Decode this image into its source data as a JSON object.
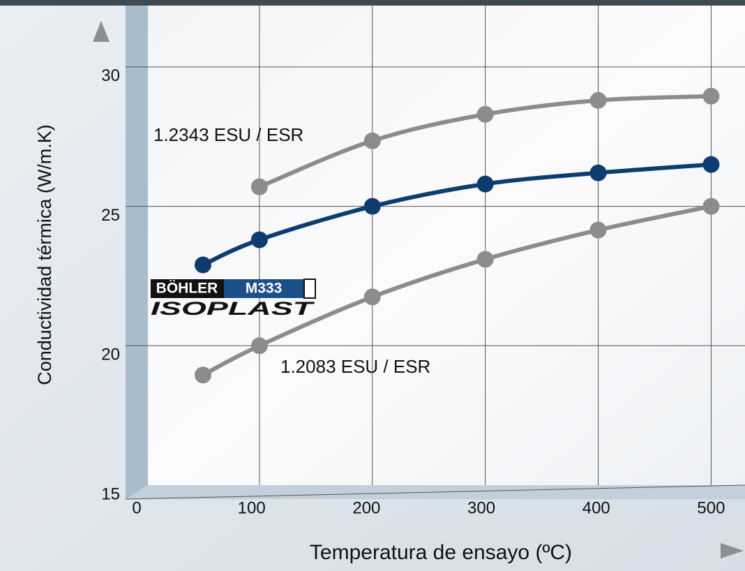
{
  "chart_data": {
    "type": "line",
    "xlabel": "Temperatura de ensayo (ºC)",
    "ylabel": "Conductividad térmica (W/m.K)",
    "xlim": [
      0,
      530
    ],
    "ylim": [
      15,
      32.2
    ],
    "xticks": [
      0,
      100,
      200,
      300,
      400,
      500
    ],
    "yticks": [
      15,
      20,
      25,
      30
    ],
    "grid": true,
    "series": [
      {
        "name": "1.2343 ESU / ESR",
        "color": "#8c8c8c",
        "x": [
          100,
          200,
          300,
          400,
          500
        ],
        "values": [
          25.7,
          27.35,
          28.3,
          28.8,
          28.95
        ]
      },
      {
        "logo": {
          "brand": "BÖHLER",
          "grade": "M333",
          "line": "ISOPLAST"
        },
        "color": "#0d3d70",
        "x": [
          50,
          100,
          200,
          300,
          400,
          500
        ],
        "values": [
          22.9,
          23.8,
          25.0,
          25.8,
          26.2,
          26.5
        ]
      },
      {
        "name": "1.2083 ESU / ESR",
        "color": "#8c8c8c",
        "x": [
          50,
          100,
          200,
          300,
          400,
          500
        ],
        "values": [
          18.95,
          20.0,
          21.75,
          23.1,
          24.15,
          25.0
        ]
      }
    ]
  }
}
